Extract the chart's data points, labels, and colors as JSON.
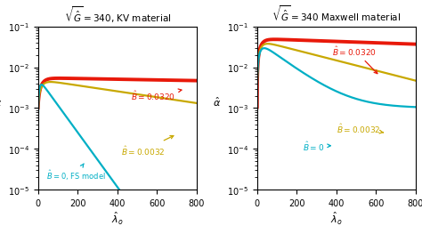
{
  "fig_width": 4.74,
  "fig_height": 2.55,
  "dpi": 100,
  "left_title": "$\\sqrt{\\hat{G}} = 340$, KV material",
  "right_title": "$\\sqrt{\\hat{G}} = 340$ Maxwell material",
  "xlabel": "$\\hat{\\lambda}_o$",
  "ylabel_left": "$\\hat{\\alpha}$",
  "ylabel_right": "$\\hat{\\alpha}$",
  "xlim_left": [
    0,
    800
  ],
  "xlim_right": [
    0,
    800
  ],
  "ylim": [
    1e-05,
    0.1
  ],
  "colors": {
    "red": "#e8190a",
    "yellow": "#c8a800",
    "cyan": "#00afc5"
  }
}
